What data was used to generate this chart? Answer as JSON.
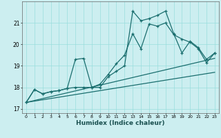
{
  "xlabel": "Humidex (Indice chaleur)",
  "bg_color": "#cceef0",
  "grid_color": "#99dddd",
  "line_color": "#1a6e6e",
  "xlim": [
    -0.5,
    23.5
  ],
  "ylim": [
    16.8,
    22.0
  ],
  "yticks": [
    17,
    18,
    19,
    20,
    21
  ],
  "xticks": [
    0,
    1,
    2,
    3,
    4,
    5,
    6,
    7,
    8,
    9,
    10,
    11,
    12,
    13,
    14,
    15,
    16,
    17,
    18,
    19,
    20,
    21,
    22,
    23
  ],
  "series": [
    {
      "x": [
        0,
        1,
        2,
        3,
        4,
        5,
        6,
        7,
        8,
        9,
        10,
        11,
        12,
        13,
        14,
        15,
        16,
        17,
        18,
        19,
        20,
        21,
        22,
        23
      ],
      "y": [
        17.3,
        17.9,
        17.7,
        17.8,
        17.85,
        17.95,
        18.0,
        18.0,
        18.0,
        18.15,
        18.6,
        19.1,
        19.5,
        20.5,
        19.8,
        20.95,
        20.85,
        21.0,
        20.45,
        20.25,
        20.1,
        19.8,
        19.15,
        19.6
      ],
      "marker": true
    },
    {
      "x": [
        0,
        1,
        2,
        3,
        4,
        5,
        6,
        7,
        8,
        9,
        10,
        11,
        12,
        13,
        14,
        15,
        16,
        17,
        18,
        19,
        20,
        21,
        22,
        23
      ],
      "y": [
        17.3,
        17.9,
        17.7,
        17.8,
        17.85,
        17.95,
        19.3,
        19.35,
        18.0,
        18.0,
        18.5,
        18.75,
        19.0,
        21.55,
        21.1,
        21.2,
        21.35,
        21.55,
        20.5,
        19.6,
        20.15,
        19.85,
        19.3,
        19.6
      ],
      "marker": true
    },
    {
      "x": [
        0,
        23
      ],
      "y": [
        17.3,
        18.7
      ],
      "marker": false
    },
    {
      "x": [
        0,
        23
      ],
      "y": [
        17.3,
        19.35
      ],
      "marker": false
    }
  ]
}
